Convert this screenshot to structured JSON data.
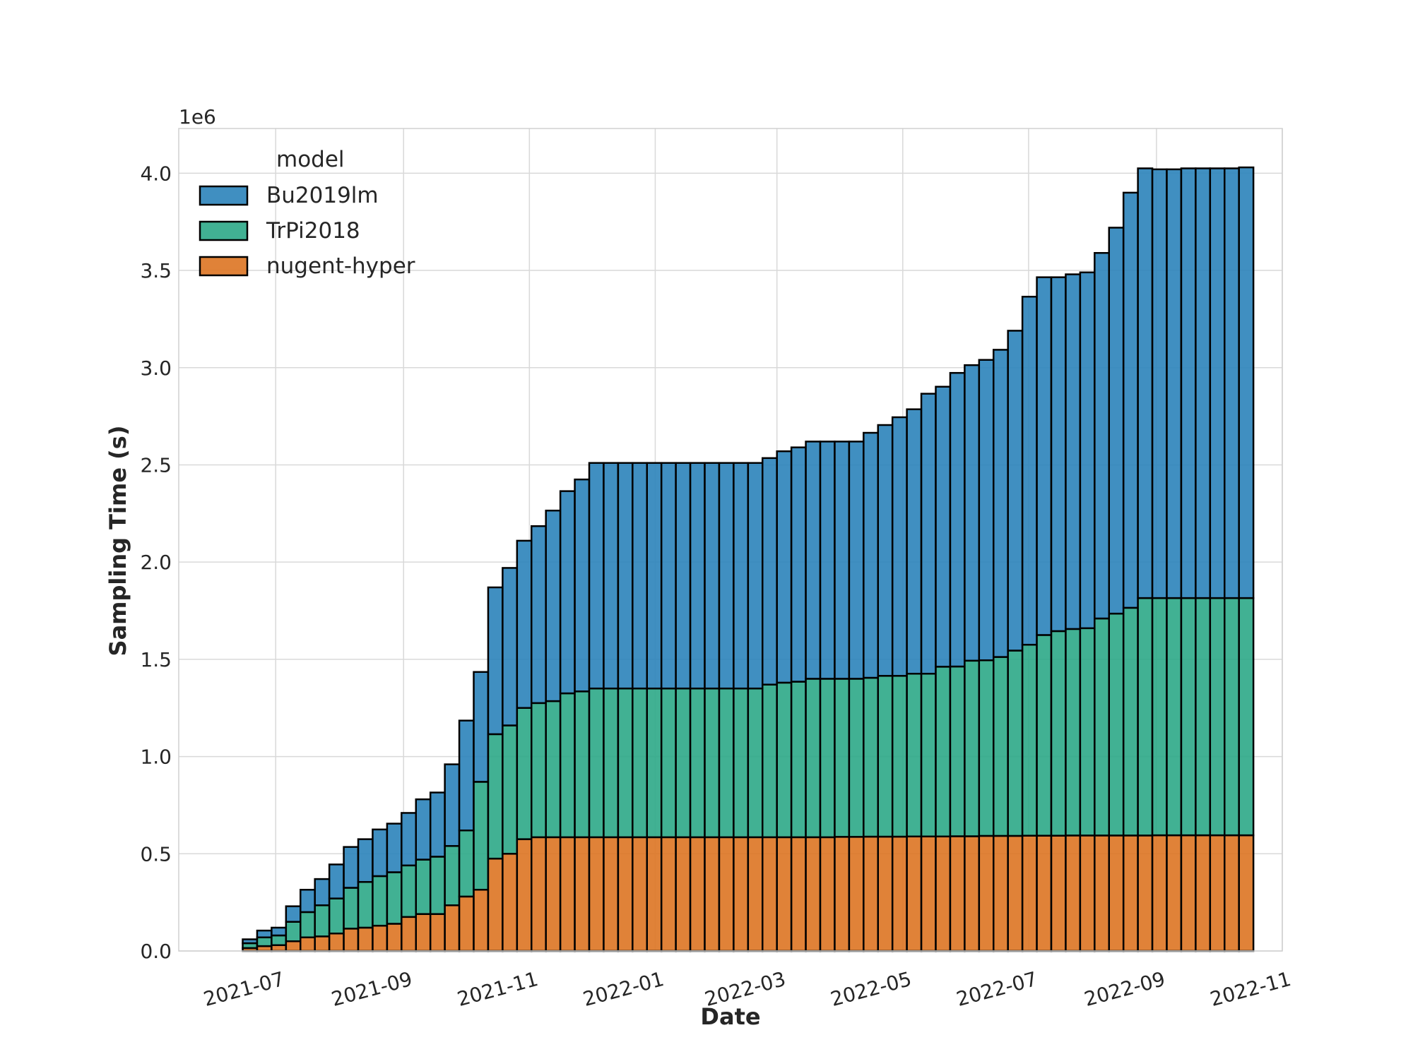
{
  "chart_data": {
    "type": "bar",
    "stacked": true,
    "x_unit": "date",
    "xlabel": "Date",
    "ylabel": "Sampling Time (s)",
    "y_offset_label": "1e6",
    "y_scale_factor": 1000000,
    "xlim": [
      "2021-05-15",
      "2022-11-01"
    ],
    "ylim": [
      0,
      4.23
    ],
    "x_ticks": [
      "2021-07",
      "2021-09",
      "2021-11",
      "2022-01",
      "2022-03",
      "2022-05",
      "2022-07",
      "2022-09",
      "2022-11"
    ],
    "y_ticks": [
      "0.0",
      "0.5",
      "1.0",
      "1.5",
      "2.0",
      "2.5",
      "3.0",
      "3.5",
      "4.0"
    ],
    "grid": true,
    "legend": {
      "title": "model",
      "placement": "upper-left",
      "order": [
        "Bu2019lm",
        "TrPi2018",
        "nugent-hyper"
      ]
    },
    "bin_start": "2021-06-15",
    "bin_width_days": 7,
    "series": [
      {
        "name": "nugent-hyper",
        "color": "#dd7422",
        "values": [
          0.015,
          0.025,
          0.03,
          0.05,
          0.07,
          0.075,
          0.09,
          0.115,
          0.12,
          0.13,
          0.14,
          0.175,
          0.19,
          0.19,
          0.235,
          0.28,
          0.315,
          0.475,
          0.5,
          0.575,
          0.585,
          0.585,
          0.585,
          0.585,
          0.585,
          0.585,
          0.585,
          0.585,
          0.585,
          0.585,
          0.585,
          0.585,
          0.585,
          0.585,
          0.585,
          0.585,
          0.585,
          0.585,
          0.585,
          0.585,
          0.585,
          0.587,
          0.587,
          0.588,
          0.588,
          0.588,
          0.589,
          0.589,
          0.589,
          0.59,
          0.59,
          0.592,
          0.592,
          0.592,
          0.593,
          0.593,
          0.593,
          0.594,
          0.594,
          0.594,
          0.594,
          0.594,
          0.594,
          0.595,
          0.595,
          0.595,
          0.595,
          0.595,
          0.595,
          0.595
        ]
      },
      {
        "name": "TrPi2018",
        "color": "#2ca887",
        "values": [
          0.025,
          0.045,
          0.05,
          0.1,
          0.13,
          0.16,
          0.18,
          0.21,
          0.235,
          0.255,
          0.265,
          0.265,
          0.28,
          0.295,
          0.305,
          0.34,
          0.555,
          0.64,
          0.66,
          0.675,
          0.69,
          0.7,
          0.74,
          0.75,
          0.765,
          0.765,
          0.765,
          0.765,
          0.765,
          0.765,
          0.765,
          0.765,
          0.765,
          0.765,
          0.765,
          0.765,
          0.785,
          0.795,
          0.8,
          0.815,
          0.815,
          0.813,
          0.813,
          0.817,
          0.827,
          0.827,
          0.837,
          0.837,
          0.873,
          0.873,
          0.903,
          0.903,
          0.92,
          0.953,
          0.982,
          1.032,
          1.052,
          1.062,
          1.066,
          1.116,
          1.141,
          1.171,
          1.221,
          1.22,
          1.22,
          1.22,
          1.22,
          1.22,
          1.22,
          1.22
        ]
      },
      {
        "name": "Bu2019lm",
        "color": "#2b83ba",
        "values": [
          0.02,
          0.035,
          0.04,
          0.08,
          0.115,
          0.135,
          0.175,
          0.21,
          0.22,
          0.24,
          0.25,
          0.27,
          0.31,
          0.33,
          0.42,
          0.565,
          0.565,
          0.755,
          0.81,
          0.86,
          0.91,
          0.98,
          1.04,
          1.09,
          1.16,
          1.16,
          1.16,
          1.16,
          1.16,
          1.16,
          1.16,
          1.16,
          1.16,
          1.16,
          1.16,
          1.16,
          1.165,
          1.19,
          1.205,
          1.22,
          1.22,
          1.22,
          1.22,
          1.26,
          1.29,
          1.33,
          1.36,
          1.44,
          1.44,
          1.51,
          1.52,
          1.545,
          1.58,
          1.645,
          1.79,
          1.84,
          1.82,
          1.824,
          1.83,
          1.88,
          1.985,
          2.135,
          2.21,
          2.205,
          2.205,
          2.21,
          2.21,
          2.21,
          2.21,
          2.215
        ]
      }
    ]
  }
}
